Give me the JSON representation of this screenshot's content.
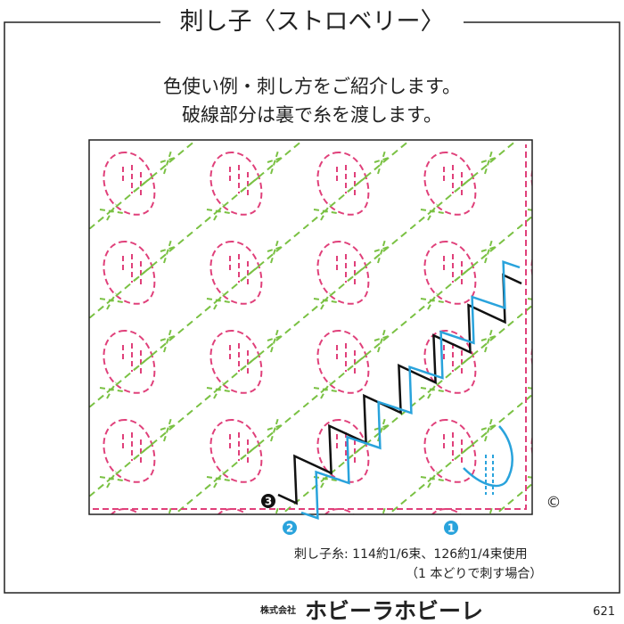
{
  "title": "刺し子〈ストロベリー〉",
  "description": [
    "色使い例・刺し方をご紹介します。",
    "破線部分は裏で糸を渡します。"
  ],
  "diagram": {
    "markers": [
      "3",
      "2",
      "1"
    ],
    "copyright": "©"
  },
  "thread": [
    "刺し子糸: 114約1/6束、126約1/4束使用",
    "（1 本どりで刺す場合）"
  ],
  "footer": {
    "company_type": "株式会社",
    "brand": "ホビーラホビーレ",
    "page": "621"
  }
}
